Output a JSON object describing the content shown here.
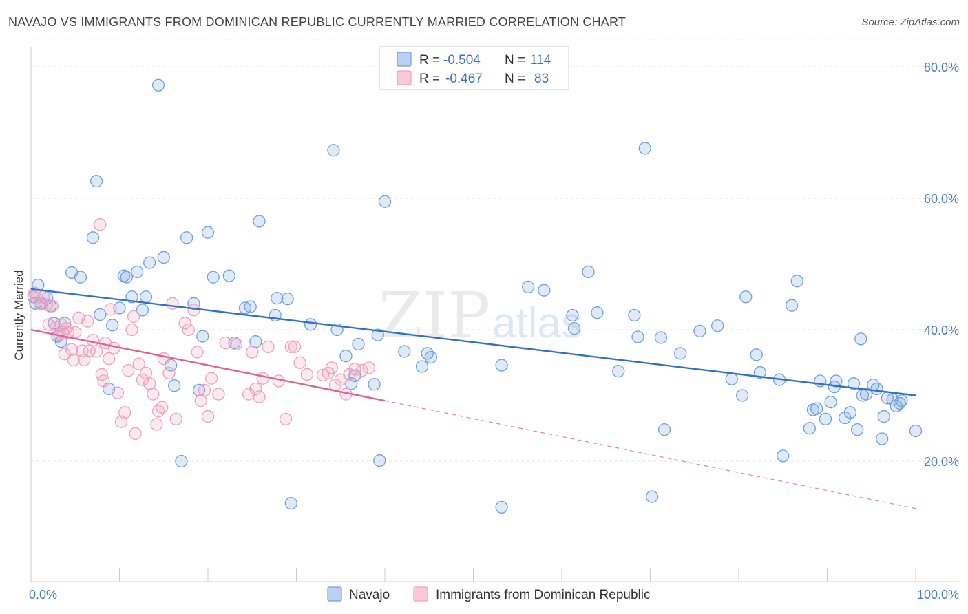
{
  "title": "NAVAJO VS IMMIGRANTS FROM DOMINICAN REPUBLIC CURRENTLY MARRIED CORRELATION CHART",
  "source": "Source: ZipAtlas.com",
  "watermark": {
    "zip": "ZIP",
    "atlas": "atlas"
  },
  "legend": {
    "navajo": {
      "r_label": "R =",
      "r_value": "-0.504",
      "n_label": "N =",
      "n_value": "114"
    },
    "dominican": {
      "r_label": "R =",
      "r_value": "-0.467",
      "n_label": "N =",
      "n_value": "83"
    }
  },
  "bottom_legend": {
    "navajo": "Navajo",
    "dominican": "Immigrants from Dominican Republic"
  },
  "chart_data": {
    "type": "scatter",
    "title": "NAVAJO VS IMMIGRANTS FROM DOMINICAN REPUBLIC CURRENTLY MARRIED CORRELATION CHART",
    "xlabel": "",
    "ylabel": "Currently Married",
    "xlim": [
      0,
      100
    ],
    "ylim": [
      0,
      84
    ],
    "x_tick_labels": [
      "0.0%",
      "100.0%"
    ],
    "y_ticks": [
      20,
      40,
      60,
      80
    ],
    "y_tick_labels": [
      "20.0%",
      "40.0%",
      "60.0%",
      "80.0%"
    ],
    "grid": "horizontal dashed",
    "colors": {
      "navajo": "#6fa0de",
      "navajo_line": "#2f6fcf",
      "dominican": "#f0a0bc",
      "dominican_line": "#e0608f"
    },
    "series": [
      {
        "name": "Navajo",
        "trend": {
          "x": [
            0,
            100
          ],
          "y": [
            46.2,
            30.0
          ]
        },
        "points": [
          [
            0.3,
            45
          ],
          [
            0.5,
            44
          ],
          [
            0.8,
            46.8
          ],
          [
            1.2,
            44
          ],
          [
            1.8,
            44.8
          ],
          [
            2.2,
            43.6
          ],
          [
            2.6,
            41
          ],
          [
            3,
            39
          ],
          [
            3.4,
            38.2
          ],
          [
            3.8,
            41
          ],
          [
            4.6,
            48.7
          ],
          [
            5.6,
            48
          ],
          [
            7,
            54
          ],
          [
            7.4,
            62.6
          ],
          [
            7.8,
            42.3
          ],
          [
            8.8,
            31
          ],
          [
            9.2,
            40.7
          ],
          [
            10,
            43.3
          ],
          [
            10.5,
            48.2
          ],
          [
            10.8,
            48
          ],
          [
            11.4,
            45
          ],
          [
            12,
            48.8
          ],
          [
            12.6,
            43
          ],
          [
            13,
            45
          ],
          [
            13.4,
            50.2
          ],
          [
            14.4,
            77.2
          ],
          [
            15,
            51
          ],
          [
            15.8,
            34.6
          ],
          [
            16.2,
            31.5
          ],
          [
            17,
            20
          ],
          [
            17.6,
            54
          ],
          [
            18.4,
            44
          ],
          [
            19,
            30.8
          ],
          [
            19.4,
            39
          ],
          [
            20,
            54.8
          ],
          [
            20.6,
            48
          ],
          [
            22.4,
            48.2
          ],
          [
            23,
            38
          ],
          [
            24.2,
            43.3
          ],
          [
            24.8,
            43.5
          ],
          [
            25.4,
            38.2
          ],
          [
            25.8,
            56.5
          ],
          [
            27.6,
            42.2
          ],
          [
            27.8,
            44.8
          ],
          [
            29,
            44.7
          ],
          [
            29.4,
            13.6
          ],
          [
            31.6,
            40.8
          ],
          [
            34.2,
            67.3
          ],
          [
            34.6,
            40
          ],
          [
            35.6,
            36
          ],
          [
            36.6,
            33
          ],
          [
            36.2,
            31.8
          ],
          [
            37,
            37.8
          ],
          [
            38.8,
            31.7
          ],
          [
            39.2,
            39.2
          ],
          [
            39.4,
            20.1
          ],
          [
            40,
            59.5
          ],
          [
            42.2,
            36.7
          ],
          [
            44.2,
            34.4
          ],
          [
            44.8,
            36.4
          ],
          [
            45.2,
            35.8
          ],
          [
            53.2,
            34.6
          ],
          [
            53.2,
            13
          ],
          [
            56.2,
            46.5
          ],
          [
            58,
            46
          ],
          [
            61.2,
            42.2
          ],
          [
            61.4,
            40.2
          ],
          [
            63,
            48.8
          ],
          [
            64,
            42.6
          ],
          [
            66.4,
            33.7
          ],
          [
            68.2,
            42.2
          ],
          [
            68.6,
            38.9
          ],
          [
            69.4,
            67.6
          ],
          [
            71.2,
            38.8
          ],
          [
            71.6,
            24.8
          ],
          [
            70.2,
            14.6
          ],
          [
            73.4,
            36.4
          ],
          [
            75.6,
            39.8
          ],
          [
            77.6,
            40.6
          ],
          [
            79.2,
            32.5
          ],
          [
            80.4,
            30
          ],
          [
            80.8,
            45
          ],
          [
            82,
            36.2
          ],
          [
            82.4,
            33.5
          ],
          [
            84.6,
            32.4
          ],
          [
            85,
            20.8
          ],
          [
            86,
            43.7
          ],
          [
            86.6,
            47.4
          ],
          [
            88,
            25
          ],
          [
            88.4,
            27.8
          ],
          [
            88.8,
            28
          ],
          [
            89.2,
            32.2
          ],
          [
            89.8,
            26.4
          ],
          [
            90.4,
            29
          ],
          [
            90.8,
            31.3
          ],
          [
            91,
            32.2
          ],
          [
            92,
            26.6
          ],
          [
            92.6,
            27.4
          ],
          [
            93,
            31.8
          ],
          [
            93.4,
            24.8
          ],
          [
            93.8,
            38.6
          ],
          [
            94,
            30
          ],
          [
            94.4,
            30.2
          ],
          [
            95.2,
            31.6
          ],
          [
            95.6,
            31
          ],
          [
            96.2,
            23.4
          ],
          [
            96.4,
            26.8
          ],
          [
            96.8,
            29.6
          ],
          [
            97.4,
            29.4
          ],
          [
            97.8,
            28.4
          ],
          [
            98.2,
            28.8
          ],
          [
            98.4,
            29.2
          ],
          [
            100,
            24.6
          ]
        ]
      },
      {
        "name": "Immigrants from Dominican Republic",
        "trend": {
          "x": [
            0,
            40
          ],
          "y": [
            40.0,
            29.2
          ]
        },
        "trend_extrapolated": {
          "x": [
            40,
            100
          ],
          "y": [
            29.2,
            12.8
          ]
        },
        "points": [
          [
            0.4,
            45.6
          ],
          [
            0.6,
            44.8
          ],
          [
            1,
            44
          ],
          [
            1.4,
            45
          ],
          [
            1.8,
            43.8
          ],
          [
            2,
            40.8
          ],
          [
            2.4,
            43.6
          ],
          [
            2.8,
            40.4
          ],
          [
            3.2,
            39.3
          ],
          [
            3.4,
            40.8
          ],
          [
            3.6,
            39.6
          ],
          [
            3.8,
            36.3
          ],
          [
            4,
            40.2
          ],
          [
            4.2,
            39.6
          ],
          [
            4.6,
            37
          ],
          [
            4.8,
            35.4
          ],
          [
            5,
            39.6
          ],
          [
            5.4,
            41.8
          ],
          [
            5.8,
            36.8
          ],
          [
            6,
            35.4
          ],
          [
            6.4,
            41.3
          ],
          [
            6.6,
            36.8
          ],
          [
            7,
            38.4
          ],
          [
            7.4,
            36.7
          ],
          [
            7.8,
            56
          ],
          [
            8,
            33.2
          ],
          [
            8.2,
            32.2
          ],
          [
            8.4,
            38
          ],
          [
            8.8,
            35.6
          ],
          [
            9,
            43.1
          ],
          [
            9.4,
            37.2
          ],
          [
            9.8,
            30.4
          ],
          [
            10.2,
            26
          ],
          [
            10.6,
            27.4
          ],
          [
            11,
            33.8
          ],
          [
            11.4,
            40
          ],
          [
            11.6,
            42
          ],
          [
            11.8,
            24.2
          ],
          [
            12.2,
            34.8
          ],
          [
            12.6,
            32.4
          ],
          [
            13,
            33.4
          ],
          [
            13.4,
            31.8
          ],
          [
            13.8,
            30.2
          ],
          [
            14.2,
            25.6
          ],
          [
            14.4,
            27.6
          ],
          [
            14.8,
            28.2
          ],
          [
            15,
            35.6
          ],
          [
            15.6,
            33.4
          ],
          [
            16,
            44
          ],
          [
            16.4,
            26.4
          ],
          [
            17.4,
            41
          ],
          [
            17.8,
            40
          ],
          [
            18.4,
            43
          ],
          [
            18.8,
            36.6
          ],
          [
            19.2,
            29.2
          ],
          [
            19.6,
            30.8
          ],
          [
            20,
            26.8
          ],
          [
            20.4,
            32.6
          ],
          [
            21.2,
            30.2
          ],
          [
            22,
            38
          ],
          [
            23.2,
            37.8
          ],
          [
            24.6,
            30.2
          ],
          [
            25,
            36.6
          ],
          [
            25.4,
            31
          ],
          [
            25.8,
            29.8
          ],
          [
            26.2,
            32.6
          ],
          [
            26.8,
            37.4
          ],
          [
            28,
            32.2
          ],
          [
            28.8,
            26.4
          ],
          [
            29.4,
            37.4
          ],
          [
            29.8,
            37.4
          ],
          [
            30.4,
            35
          ],
          [
            31.2,
            33.2
          ],
          [
            33,
            33.1
          ],
          [
            33.6,
            33.4
          ],
          [
            34,
            34.2
          ],
          [
            34.4,
            31.6
          ],
          [
            35,
            32.4
          ],
          [
            35.6,
            30.2
          ],
          [
            36,
            33.2
          ],
          [
            36.6,
            34
          ],
          [
            37.4,
            33.8
          ],
          [
            38.2,
            34.2
          ]
        ]
      }
    ]
  }
}
